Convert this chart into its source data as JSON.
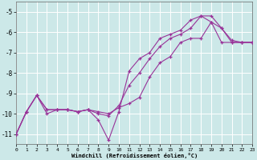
{
  "background_color": "#cce8e8",
  "grid_color": "#ffffff",
  "line_color": "#993399",
  "xlim": [
    0,
    23
  ],
  "ylim": [
    -11.5,
    -4.5
  ],
  "xticks": [
    0,
    1,
    2,
    3,
    4,
    5,
    6,
    7,
    8,
    9,
    10,
    11,
    12,
    13,
    14,
    15,
    16,
    17,
    18,
    19,
    20,
    21,
    22,
    23
  ],
  "yticks": [
    -11,
    -10,
    -9,
    -8,
    -7,
    -6,
    -5
  ],
  "xlabel": "Windchill (Refroidissement éolien,°C)",
  "line1_x": [
    0,
    1,
    2,
    3,
    4,
    5,
    6,
    7,
    8,
    9,
    10,
    11,
    12,
    13,
    14,
    15,
    16,
    17,
    18,
    19,
    20,
    21,
    22,
    23
  ],
  "line1_y": [
    -11.0,
    -9.9,
    -9.1,
    -10.0,
    -9.8,
    -9.8,
    -9.9,
    -9.8,
    -9.9,
    -10.0,
    -9.7,
    -9.5,
    -9.2,
    -8.2,
    -7.5,
    -7.2,
    -6.5,
    -6.3,
    -6.3,
    -5.5,
    -5.8,
    -6.5,
    -6.5,
    -6.5
  ],
  "line2_x": [
    0,
    1,
    2,
    3,
    4,
    5,
    6,
    7,
    8,
    9,
    10,
    11,
    12,
    13,
    14,
    15,
    16,
    17,
    18,
    19,
    20,
    21,
    22,
    23
  ],
  "line2_y": [
    -11.0,
    -9.9,
    -9.1,
    -9.8,
    -9.8,
    -9.8,
    -9.9,
    -9.8,
    -10.3,
    -11.3,
    -9.9,
    -7.9,
    -7.3,
    -7.0,
    -6.3,
    -6.1,
    -5.9,
    -5.4,
    -5.2,
    -5.2,
    -5.8,
    -6.4,
    -6.5,
    -6.5
  ],
  "line3_x": [
    0,
    1,
    2,
    3,
    4,
    5,
    6,
    7,
    8,
    9,
    10,
    11,
    12,
    13,
    14,
    15,
    16,
    17,
    18,
    19,
    20,
    21,
    22,
    23
  ],
  "line3_y": [
    -11.0,
    -9.9,
    -9.1,
    -9.8,
    -9.8,
    -9.8,
    -9.9,
    -9.8,
    -10.0,
    -10.1,
    -9.6,
    -8.6,
    -8.0,
    -7.3,
    -6.7,
    -6.3,
    -6.1,
    -5.8,
    -5.2,
    -5.5,
    -6.5,
    -6.5,
    -6.5,
    -6.5
  ]
}
